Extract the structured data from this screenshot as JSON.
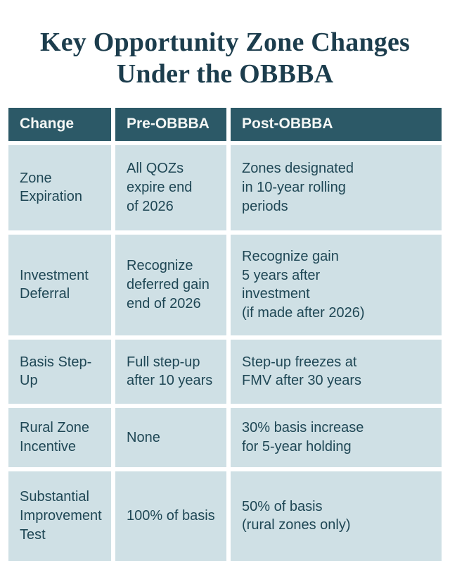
{
  "title": "Key Opportunity Zone Changes\nUnder the OBBBA",
  "colors": {
    "page_bg": "#ffffff",
    "title_text": "#1c3d4d",
    "header_bg": "#2c5967",
    "header_text": "#f4f7f5",
    "cell_bg": "#cfe0e5",
    "cell_text": "#1f4755"
  },
  "table": {
    "columns": [
      "Change",
      "Pre-OBBBA",
      "Post-OBBBA"
    ],
    "rows": [
      {
        "change": "Zone\nExpiration",
        "pre": "All QOZs\nexpire end\nof 2026",
        "post": "Zones designated\nin 10-year rolling\nperiods"
      },
      {
        "change": "Investment\nDeferral",
        "pre": "Recognize\ndeferred gain\nend of 2026",
        "post": "Recognize gain\n5 years after\ninvestment\n(if made after 2026)"
      },
      {
        "change": "Basis Step-Up",
        "pre": "Full step-up\nafter 10 years",
        "post": "Step-up freezes at\nFMV after 30 years"
      },
      {
        "change": "Rural Zone\nIncentive",
        "pre": "None",
        "post": "30% basis increase\nfor 5-year holding"
      },
      {
        "change": "Substantial\nImprovement\nTest",
        "pre": "100% of basis",
        "post": "50% of basis\n(rural zones only)"
      }
    ]
  }
}
